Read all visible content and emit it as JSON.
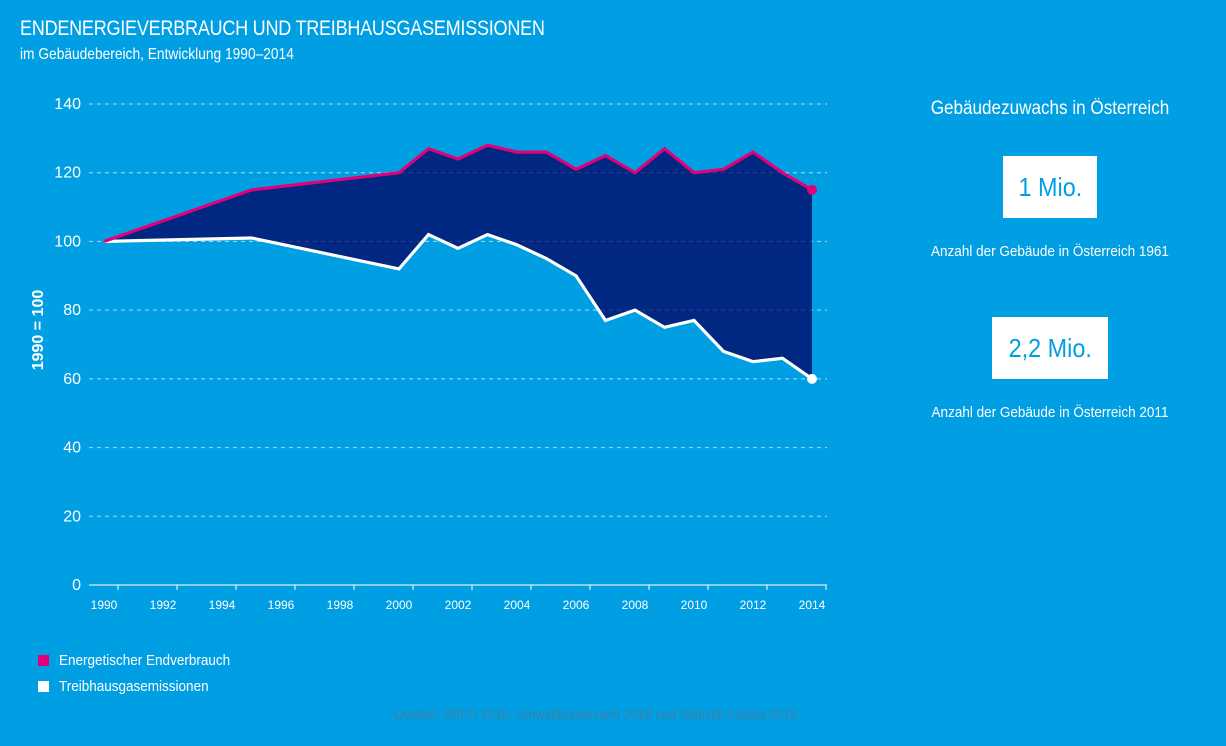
{
  "header": {
    "title": "ENDENERGIEVERBRAUCH UND TREIBHAUSGASEMISSIONEN",
    "subtitle": "im Gebäudebereich, Entwicklung 1990–2014"
  },
  "colors": {
    "background": "#009FE3",
    "energy": "#E2007A",
    "emissions": "#FFFFFF",
    "gap_fill": "#002882",
    "grid": "#C8E6F7"
  },
  "chart_data": {
    "type": "line",
    "title": "ENDENERGIEVERBRAUCH UND TREIBHAUSGASEMISSIONEN",
    "subtitle": "im Gebäudebereich, Entwicklung 1990–2014",
    "xlabel": "",
    "ylabel": "1990 = 100",
    "ylim": [
      0,
      140
    ],
    "yticks": [
      0,
      20,
      40,
      60,
      80,
      100,
      120,
      140
    ],
    "xlim": [
      1990,
      2014
    ],
    "xticks": [
      "1990",
      "1992",
      "1994",
      "1996",
      "1998",
      "2000",
      "2002",
      "2004",
      "2006",
      "2008",
      "2010",
      "2012",
      "2014"
    ],
    "grid": true,
    "legend_position": "bottom-left",
    "area_between_series": true,
    "series": [
      {
        "name": "Energetischer Endverbrauch",
        "color": "#E2007A",
        "x": [
          1990,
          1995,
          2000,
          2001,
          2002,
          2003,
          2004,
          2005,
          2006,
          2007,
          2008,
          2009,
          2010,
          2011,
          2012,
          2013,
          2014
        ],
        "values": [
          100,
          115,
          120,
          127,
          124,
          128,
          126,
          126,
          121,
          125,
          120,
          127,
          120,
          121,
          126,
          120,
          115
        ]
      },
      {
        "name": "Treibhausgasemissionen",
        "color": "#FFFFFF",
        "x": [
          1990,
          1995,
          2000,
          2001,
          2002,
          2003,
          2004,
          2005,
          2006,
          2007,
          2008,
          2009,
          2010,
          2011,
          2012,
          2013,
          2014
        ],
        "values": [
          100,
          101,
          92,
          102,
          98,
          102,
          99,
          95,
          90,
          77,
          80,
          75,
          77,
          68,
          65,
          66,
          60
        ]
      }
    ]
  },
  "legend": [
    {
      "label": "Energetischer Endverbrauch",
      "color": "#E2007A"
    },
    {
      "label": "Treibhausgasemissionen",
      "color": "#FFFFFF"
    }
  ],
  "source": "Quellen: WIFO 2016, Umweltbundesamt 2016 und Statistik Austria 2015",
  "panel": {
    "heading": "Gebäudezuwachs in Österreich",
    "stats": [
      {
        "value": "1 Mio.",
        "caption": "Anzahl der Gebäude in Österreich 1961"
      },
      {
        "value": "2,2 Mio.",
        "caption": "Anzahl der Gebäude in Österreich 2011"
      }
    ]
  }
}
